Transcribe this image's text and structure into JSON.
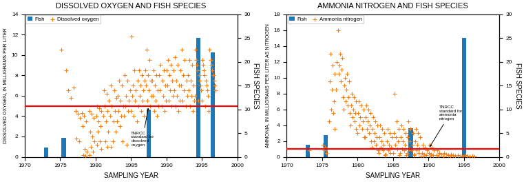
{
  "chart_data": [
    {
      "type": "scatter",
      "title": "DISSOLVED OXYGEN AND FISH SPECIES",
      "xlabel": "SAMPLING YEAR",
      "ylabel": "DISSOLVED OXYGEN, IN MILLIGRAMS PER LITER",
      "y2label": "FISH SPECIES",
      "xlim": [
        1970,
        2000
      ],
      "xticks": [
        1970,
        1975,
        1980,
        1985,
        1990,
        1995,
        2000
      ],
      "ylim": [
        0,
        14
      ],
      "yticks": [
        0,
        2,
        4,
        6,
        8,
        10,
        12,
        14
      ],
      "y2lim": [
        0,
        30
      ],
      "y2ticks": [
        0,
        5,
        10,
        15,
        20,
        25,
        30
      ],
      "legend": "upper left",
      "series": [
        {
          "name": "Fish",
          "type": "bar",
          "axis": "y2",
          "x": [
            1973,
            1975.5,
            1987.5,
            1994.5,
            1996.5
          ],
          "values": [
            2,
            4,
            10,
            25,
            22
          ]
        },
        {
          "name": "Dissolved oxygen",
          "type": "scatter",
          "marker": "plus",
          "x": [
            1975.2,
            1975.8,
            1976.1,
            1976.5,
            1976.9,
            1977.2,
            1977.5,
            1977.8,
            1977.3,
            1977.7,
            1978.1,
            1978.4,
            1978.7,
            1978.2,
            1978.5,
            1978.8,
            1978.3,
            1978.6,
            1979.1,
            1979.4,
            1979.7,
            1979.2,
            1979.5,
            1979.8,
            1979.3,
            1979.6,
            1979.1,
            1980.2,
            1980.5,
            1980.8,
            1980.1,
            1980.4,
            1980.7,
            1980.3,
            1980.6,
            1980.2,
            1980.8,
            1981.2,
            1981.6,
            1981.9,
            1981.3,
            1981.7,
            1981.1,
            1981.5,
            1981.8,
            1981.4,
            1981.7,
            1982.2,
            1982.6,
            1982.9,
            1982.3,
            1982.7,
            1982.1,
            1982.5,
            1982.8,
            1982.4,
            1982.2,
            1983.3,
            1983.7,
            1983.1,
            1983.5,
            1983.9,
            1983.2,
            1983.6,
            1983.0,
            1983.4,
            1983.8,
            1984.1,
            1984.5,
            1984.9,
            1984.3,
            1984.7,
            1984.2,
            1984.6,
            1984.0,
            1984.4,
            1985.1,
            1985.5,
            1985.9,
            1985.3,
            1985.7,
            1985.2,
            1985.6,
            1985.0,
            1985.4,
            1985.8,
            1986.1,
            1986.5,
            1986.9,
            1986.3,
            1986.7,
            1986.2,
            1986.6,
            1986.0,
            1986.4,
            1986.8,
            1987.2,
            1987.6,
            1987.0,
            1987.4,
            1987.8,
            1987.1,
            1987.5,
            1987.9,
            1987.3,
            1987.7,
            1988.2,
            1988.6,
            1988.0,
            1988.4,
            1988.8,
            1988.1,
            1988.5,
            1988.9,
            1988.3,
            1988.7,
            1989.2,
            1989.6,
            1989.0,
            1989.4,
            1989.8,
            1989.1,
            1989.5,
            1989.9,
            1989.3,
            1989.7,
            1990.2,
            1990.6,
            1990.0,
            1990.4,
            1990.8,
            1990.1,
            1990.5,
            1990.9,
            1990.3,
            1990.7,
            1991.2,
            1991.6,
            1991.0,
            1991.4,
            1991.8,
            1991.1,
            1991.5,
            1991.9,
            1991.3,
            1991.7,
            1992.2,
            1992.6,
            1992.0,
            1992.4,
            1992.8,
            1992.1,
            1992.5,
            1992.9,
            1992.3,
            1992.7,
            1993.2,
            1993.6,
            1993.0,
            1993.4,
            1993.8,
            1993.1,
            1993.5,
            1993.9,
            1993.3,
            1993.7,
            1994.1,
            1994.2,
            1994.3,
            1994.4,
            1994.6,
            1994.7,
            1994.8,
            1994.9,
            1994.0,
            1994.5,
            1995.1,
            1995.2,
            1995.3,
            1995.4,
            1995.6,
            1995.7,
            1995.8,
            1995.9,
            1995.0,
            1995.5,
            1996.1,
            1996.2,
            1996.3,
            1996.4,
            1996.6,
            1996.7,
            1996.8,
            1996.9,
            1996.0
          ],
          "values": [
            10.5,
            8.5,
            6.5,
            5.8,
            6.8,
            4.5,
            4.2,
            3.8,
            1.8,
            1.5,
            4.3,
            4.0,
            3.5,
            3.0,
            0.8,
            0.5,
            0.2,
            0.1,
            4.5,
            4.2,
            3.8,
            2.5,
            2.0,
            1.5,
            1.0,
            0.5,
            0.2,
            5.0,
            4.8,
            4.5,
            4.0,
            3.5,
            3.0,
            2.5,
            1.5,
            1.2,
            0.8,
            6.5,
            6.2,
            5.5,
            5.0,
            4.5,
            4.0,
            3.5,
            2.5,
            1.5,
            1.0,
            7.0,
            6.5,
            5.8,
            5.0,
            4.5,
            4.0,
            3.5,
            2.5,
            1.5,
            1.0,
            7.5,
            7.0,
            6.0,
            5.5,
            5.0,
            4.5,
            4.0,
            3.5,
            3.0,
            1.5,
            8.0,
            7.5,
            6.5,
            6.0,
            5.5,
            5.0,
            4.5,
            4.0,
            1.2,
            11.8,
            8.5,
            7.5,
            7.0,
            6.5,
            6.0,
            5.5,
            4.5,
            4.0,
            3.5,
            8.5,
            8.0,
            7.5,
            7.0,
            6.5,
            6.0,
            5.5,
            5.0,
            4.5,
            4.0,
            10.5,
            9.5,
            8.5,
            8.0,
            7.5,
            7.0,
            6.5,
            6.0,
            5.5,
            5.0,
            8.5,
            8.0,
            7.5,
            7.0,
            6.5,
            6.0,
            5.5,
            5.0,
            4.5,
            4.0,
            9.0,
            8.5,
            8.0,
            7.5,
            7.0,
            6.5,
            6.0,
            5.5,
            5.0,
            4.5,
            9.5,
            9.0,
            8.5,
            8.0,
            7.5,
            7.0,
            6.5,
            6.0,
            5.5,
            5.0,
            9.8,
            9.0,
            8.5,
            7.5,
            7.0,
            6.5,
            6.0,
            5.5,
            5.0,
            4.5,
            10.5,
            9.5,
            8.5,
            8.0,
            7.5,
            7.0,
            6.5,
            6.0,
            5.5,
            5.0,
            9.5,
            9.0,
            8.0,
            7.5,
            7.0,
            6.5,
            6.0,
            5.5,
            5.0,
            4.5,
            10.5,
            9.5,
            9.0,
            8.5,
            8.0,
            7.5,
            7.0,
            6.5,
            6.0,
            5.5,
            9.5,
            9.0,
            8.5,
            8.0,
            7.5,
            7.0,
            6.5,
            6.0,
            5.5,
            5.0,
            10.5,
            9.5,
            9.0,
            8.5,
            8.0,
            7.5,
            7.0,
            6.5,
            4.5
          ]
        }
      ],
      "reference_lines": [
        {
          "y": 5.0,
          "color": "#FF0000"
        }
      ],
      "annotations": [
        {
          "text": "TNRCC\nstandard for\ndissolved\noxygen",
          "x": 1987.5,
          "y": 5.0,
          "text_x": 1985.0,
          "text_y": 2.5
        }
      ]
    },
    {
      "type": "scatter",
      "title": "AMMONIA NITROGEN AND FISH SPECIES",
      "xlabel": "SAMPLING YEAR",
      "ylabel": "AMMONIA, IN MILLIGRAMS PER LITER AS NITROGEN",
      "y2label": "FISH SPECIES",
      "xlim": [
        1970,
        2000
      ],
      "xticks": [
        1970,
        1975,
        1980,
        1985,
        1990,
        1995,
        2000
      ],
      "ylim": [
        0,
        18
      ],
      "yticks": [
        0,
        2,
        4,
        6,
        8,
        10,
        12,
        14,
        16,
        18
      ],
      "y2lim": [
        0,
        30
      ],
      "y2ticks": [
        0,
        5,
        10,
        15,
        20,
        25,
        30
      ],
      "legend": "upper left",
      "series": [
        {
          "name": "Fish",
          "type": "bar",
          "axis": "y2",
          "x": [
            1973.0,
            1975.5,
            1987.5,
            1995.0
          ],
          "values": [
            2.5,
            4.5,
            6.0,
            25
          ]
        },
        {
          "name": "Ammonia nitrogen",
          "type": "scatter",
          "marker": "plus",
          "x": [
            1973.2,
            1975.1,
            1975.4,
            1975.7,
            1975.3,
            1975.6,
            1976.2,
            1976.5,
            1976.8,
            1976.1,
            1976.4,
            1976.7,
            1976.3,
            1976.6,
            1976.0,
            1976.8,
            1977.2,
            1977.5,
            1977.8,
            1977.1,
            1977.4,
            1977.7,
            1977.3,
            1977.6,
            1977.0,
            1977.9,
            1978.2,
            1978.5,
            1978.8,
            1978.1,
            1978.4,
            1978.7,
            1978.3,
            1978.6,
            1978.0,
            1978.9,
            1979.2,
            1979.5,
            1979.8,
            1979.1,
            1979.4,
            1979.7,
            1979.3,
            1979.6,
            1979.0,
            1979.8,
            1980.2,
            1980.5,
            1980.8,
            1980.1,
            1980.4,
            1980.7,
            1980.3,
            1980.6,
            1980.0,
            1980.9,
            1981.2,
            1981.5,
            1981.8,
            1981.1,
            1981.4,
            1981.7,
            1981.3,
            1981.6,
            1981.0,
            1981.9,
            1982.2,
            1982.5,
            1982.8,
            1982.1,
            1982.4,
            1982.7,
            1982.3,
            1982.6,
            1982.0,
            1982.9,
            1983.2,
            1983.5,
            1983.8,
            1983.1,
            1983.4,
            1983.7,
            1983.3,
            1983.6,
            1983.0,
            1983.9,
            1984.2,
            1984.5,
            1984.8,
            1984.1,
            1984.4,
            1984.7,
            1984.3,
            1984.6,
            1984.0,
            1985.2,
            1985.5,
            1985.8,
            1985.1,
            1985.4,
            1985.7,
            1985.3,
            1985.6,
            1985.0,
            1985.9,
            1986.2,
            1986.5,
            1986.8,
            1986.1,
            1986.4,
            1986.7,
            1986.3,
            1986.6,
            1986.0,
            1986.9,
            1987.2,
            1987.5,
            1987.8,
            1987.1,
            1987.4,
            1987.7,
            1987.3,
            1987.6,
            1987.0,
            1987.9,
            1988.2,
            1988.5,
            1988.8,
            1988.1,
            1988.4,
            1988.7,
            1988.3,
            1988.6,
            1988.0,
            1988.9,
            1989.2,
            1989.5,
            1989.8,
            1989.1,
            1989.4,
            1989.7,
            1989.3,
            1990.2,
            1990.5,
            1990.8,
            1990.1,
            1990.4,
            1990.7,
            1990.3,
            1991.2,
            1991.5,
            1991.8,
            1991.1,
            1991.4,
            1992.2,
            1992.5,
            1992.8,
            1992.1,
            1993.2,
            1993.5,
            1993.8,
            1993.1,
            1994.2,
            1994.5,
            1994.8,
            1995.2,
            1995.5,
            1995.8,
            1996.2,
            1996.5
          ],
          "values": [
            0.8,
            1.5,
            1.2,
            1.0,
            0.8,
            0.5,
            13.0,
            11.5,
            10.5,
            9.5,
            8.5,
            7.0,
            6.0,
            5.5,
            4.5,
            3.5,
            16.0,
            13.0,
            12.5,
            12.0,
            11.5,
            11.0,
            10.5,
            9.5,
            8.5,
            7.5,
            10.0,
            10.5,
            9.5,
            9.0,
            8.5,
            7.5,
            7.0,
            6.5,
            6.0,
            5.5,
            8.0,
            7.5,
            7.0,
            6.5,
            6.0,
            5.5,
            5.0,
            4.5,
            4.0,
            3.5,
            7.0,
            6.5,
            6.0,
            5.5,
            5.0,
            4.5,
            4.0,
            3.5,
            3.0,
            2.5,
            6.5,
            6.0,
            5.5,
            5.0,
            4.5,
            4.0,
            3.5,
            3.0,
            2.5,
            2.0,
            5.0,
            4.5,
            4.0,
            3.5,
            3.0,
            2.5,
            2.0,
            1.5,
            1.2,
            0.8,
            4.0,
            3.5,
            3.0,
            2.5,
            2.0,
            1.5,
            1.2,
            0.8,
            0.5,
            0.2,
            3.5,
            3.0,
            2.5,
            2.0,
            1.5,
            1.2,
            0.8,
            0.5,
            0.3,
            8.0,
            4.5,
            3.5,
            3.0,
            2.5,
            2.0,
            1.5,
            1.0,
            0.5,
            0.2,
            4.0,
            3.5,
            3.0,
            2.5,
            2.0,
            1.5,
            1.0,
            0.8,
            0.5,
            0.2,
            4.5,
            3.5,
            3.0,
            2.5,
            2.0,
            1.5,
            1.0,
            0.8,
            0.5,
            0.2,
            3.5,
            3.0,
            2.5,
            2.0,
            1.5,
            1.0,
            0.8,
            0.5,
            0.3,
            0.1,
            1.5,
            1.2,
            0.8,
            0.5,
            0.3,
            0.2,
            0.1,
            1.5,
            1.2,
            0.8,
            0.5,
            0.3,
            0.2,
            0.1,
            0.8,
            0.5,
            0.3,
            0.2,
            0.1,
            0.5,
            0.3,
            0.2,
            0.1,
            0.3,
            0.2,
            0.1,
            0.05,
            0.2,
            0.1,
            0.05,
            0.2,
            0.1,
            0.05,
            0.1,
            0.05
          ]
        }
      ],
      "reference_lines": [
        {
          "y": 1.0,
          "color": "#FF0000"
        }
      ],
      "annotations": [
        {
          "text": "TNRCC\nstandard for\nammonia\nnitrogen",
          "x": 1990.0,
          "y": 1.0,
          "text_x": 1991.5,
          "text_y": 6.5
        }
      ]
    }
  ]
}
